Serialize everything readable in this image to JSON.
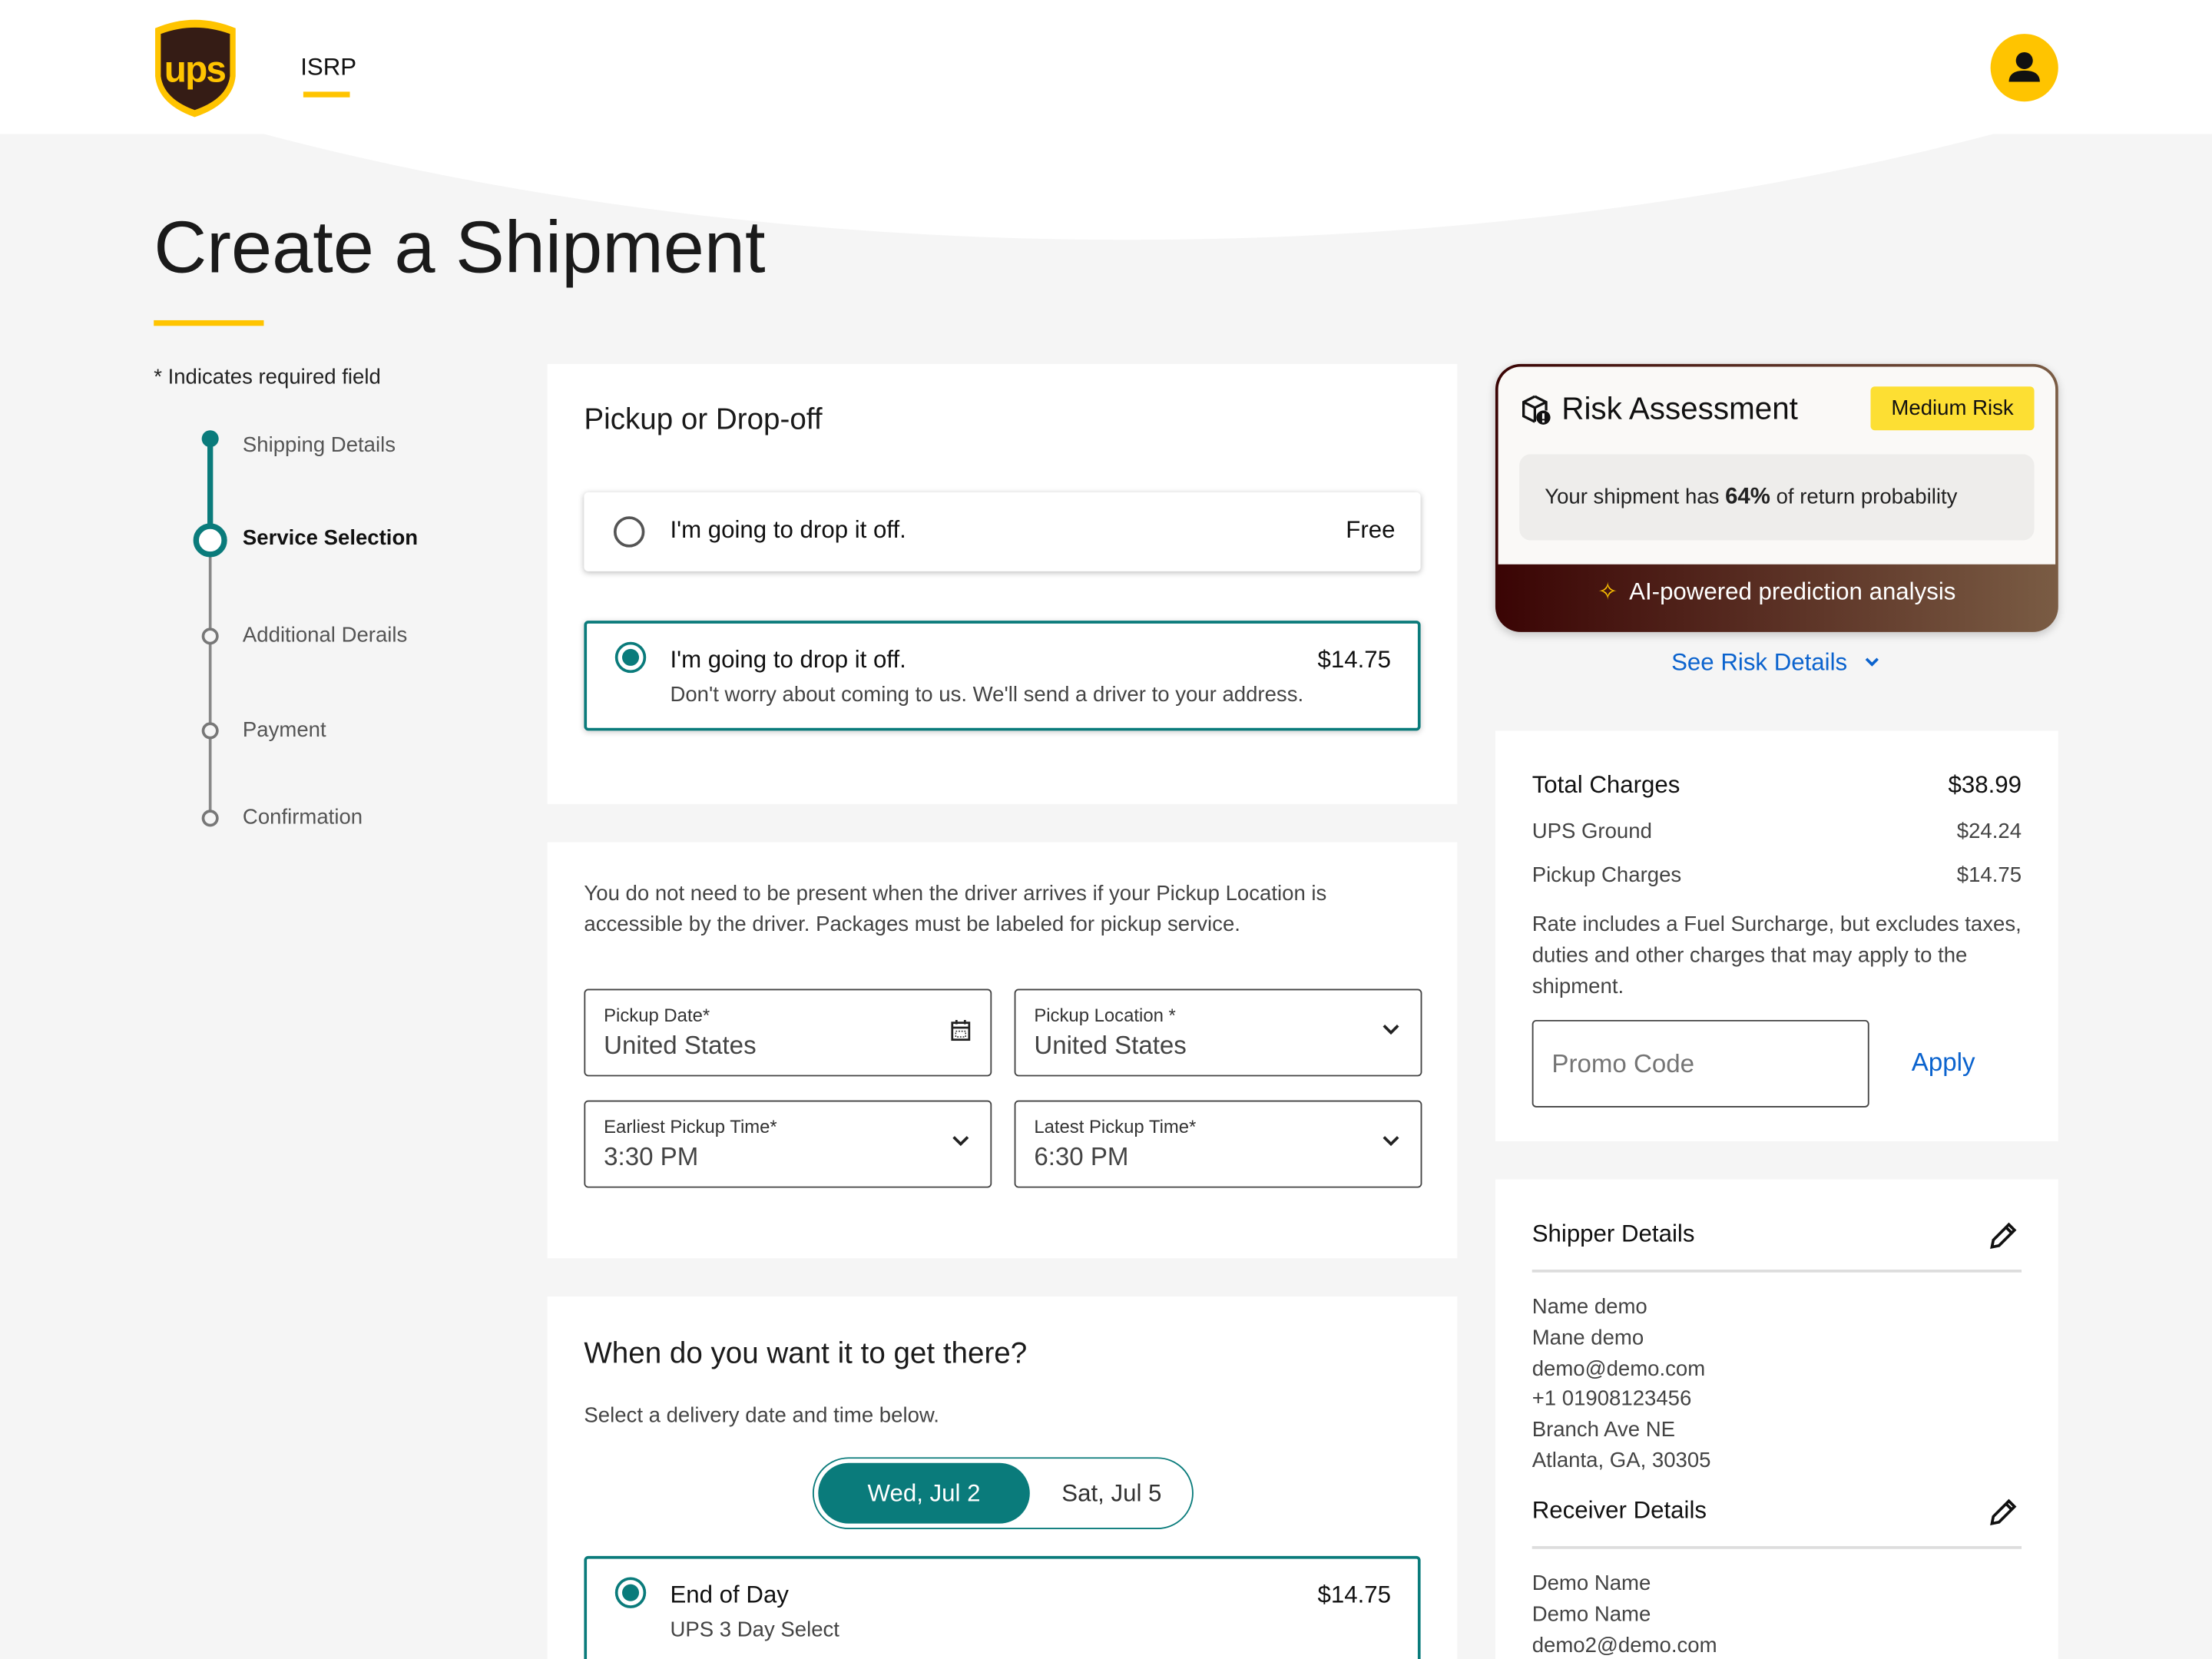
{
  "header": {
    "logo_text": "ups",
    "nav_item": "ISRP",
    "avatar_icon": "user-icon"
  },
  "page": {
    "title": "Create a Shipment",
    "required_note": "* Indicates required field"
  },
  "stepper": {
    "steps": [
      {
        "label": "Shipping Details",
        "state": "completed"
      },
      {
        "label": "Service Selection",
        "state": "current"
      },
      {
        "label": "Additional Derails",
        "state": "upcoming"
      },
      {
        "label": "Payment",
        "state": "upcoming"
      },
      {
        "label": "Confirmation",
        "state": "upcoming"
      }
    ]
  },
  "pickup": {
    "heading": "Pickup or Drop-off",
    "options": [
      {
        "label": "I'm going to drop it off.",
        "price": "Free",
        "selected": false
      },
      {
        "label": "I'm going to drop it off.",
        "price": "$14.75",
        "description": "Don't worry about coming to us. We'll send a driver to your address.",
        "selected": true
      }
    ]
  },
  "pickup_details": {
    "note": "You do not need to be present when the driver arrives if your Pickup Location is accessible by the driver. Packages must be labeled for pickup service.",
    "fields": [
      {
        "label": "Pickup Date*",
        "value": "United States",
        "icon": "calendar-icon"
      },
      {
        "label": "Pickup Location *",
        "value": "United States",
        "icon": "chevron-down-icon"
      },
      {
        "label": "Earliest Pickup Time*",
        "value": "3:30 PM",
        "icon": "chevron-down-icon"
      },
      {
        "label": "Latest Pickup Time*",
        "value": "6:30 PM",
        "icon": "chevron-down-icon"
      }
    ]
  },
  "delivery": {
    "heading": "When do you want it to get there?",
    "subheading": "Select a delivery date and time below.",
    "dates": [
      {
        "label": "Wed, Jul 2",
        "selected": true
      },
      {
        "label": "Sat, Jul 5",
        "selected": false
      }
    ],
    "options": [
      {
        "label": "End of Day",
        "service": "UPS 3 Day Select",
        "price": "$14.75",
        "selected": true
      }
    ]
  },
  "risk": {
    "title": "Risk Assessment",
    "badge": "Medium Risk",
    "text_before": "Your shipment has",
    "percent": "64%",
    "text_after": "of return probability",
    "ai_label": "AI-powered prediction analysis",
    "details_link": "See Risk Details",
    "return_probability": 64
  },
  "charges": {
    "total_label": "Total Charges",
    "total": "$38.99",
    "lines": [
      {
        "label": "UPS Ground",
        "value": "$24.24"
      },
      {
        "label": "Pickup Charges",
        "value": "$14.75"
      }
    ],
    "note": "Rate includes a Fuel Surcharge, but excludes taxes, duties and other charges that may apply to the shipment.",
    "promo_placeholder": "Promo Code",
    "apply": "Apply"
  },
  "shipper": {
    "title": "Shipper Details",
    "lines": [
      "Name demo",
      "Mane demo",
      "demo@demo.com",
      "+1 01908123456",
      "Branch Ave NE",
      "Atlanta, GA, 30305"
    ]
  },
  "receiver": {
    "title": "Receiver Details",
    "lines": [
      "Demo Name",
      "Demo Name",
      "demo2@demo.com"
    ]
  },
  "colors": {
    "teal": "#0a7b7b",
    "ups_yellow": "#FFC400",
    "ups_brown": "#351c15",
    "link_blue": "#0b63ce",
    "badge_yellow": "#fddf33"
  }
}
